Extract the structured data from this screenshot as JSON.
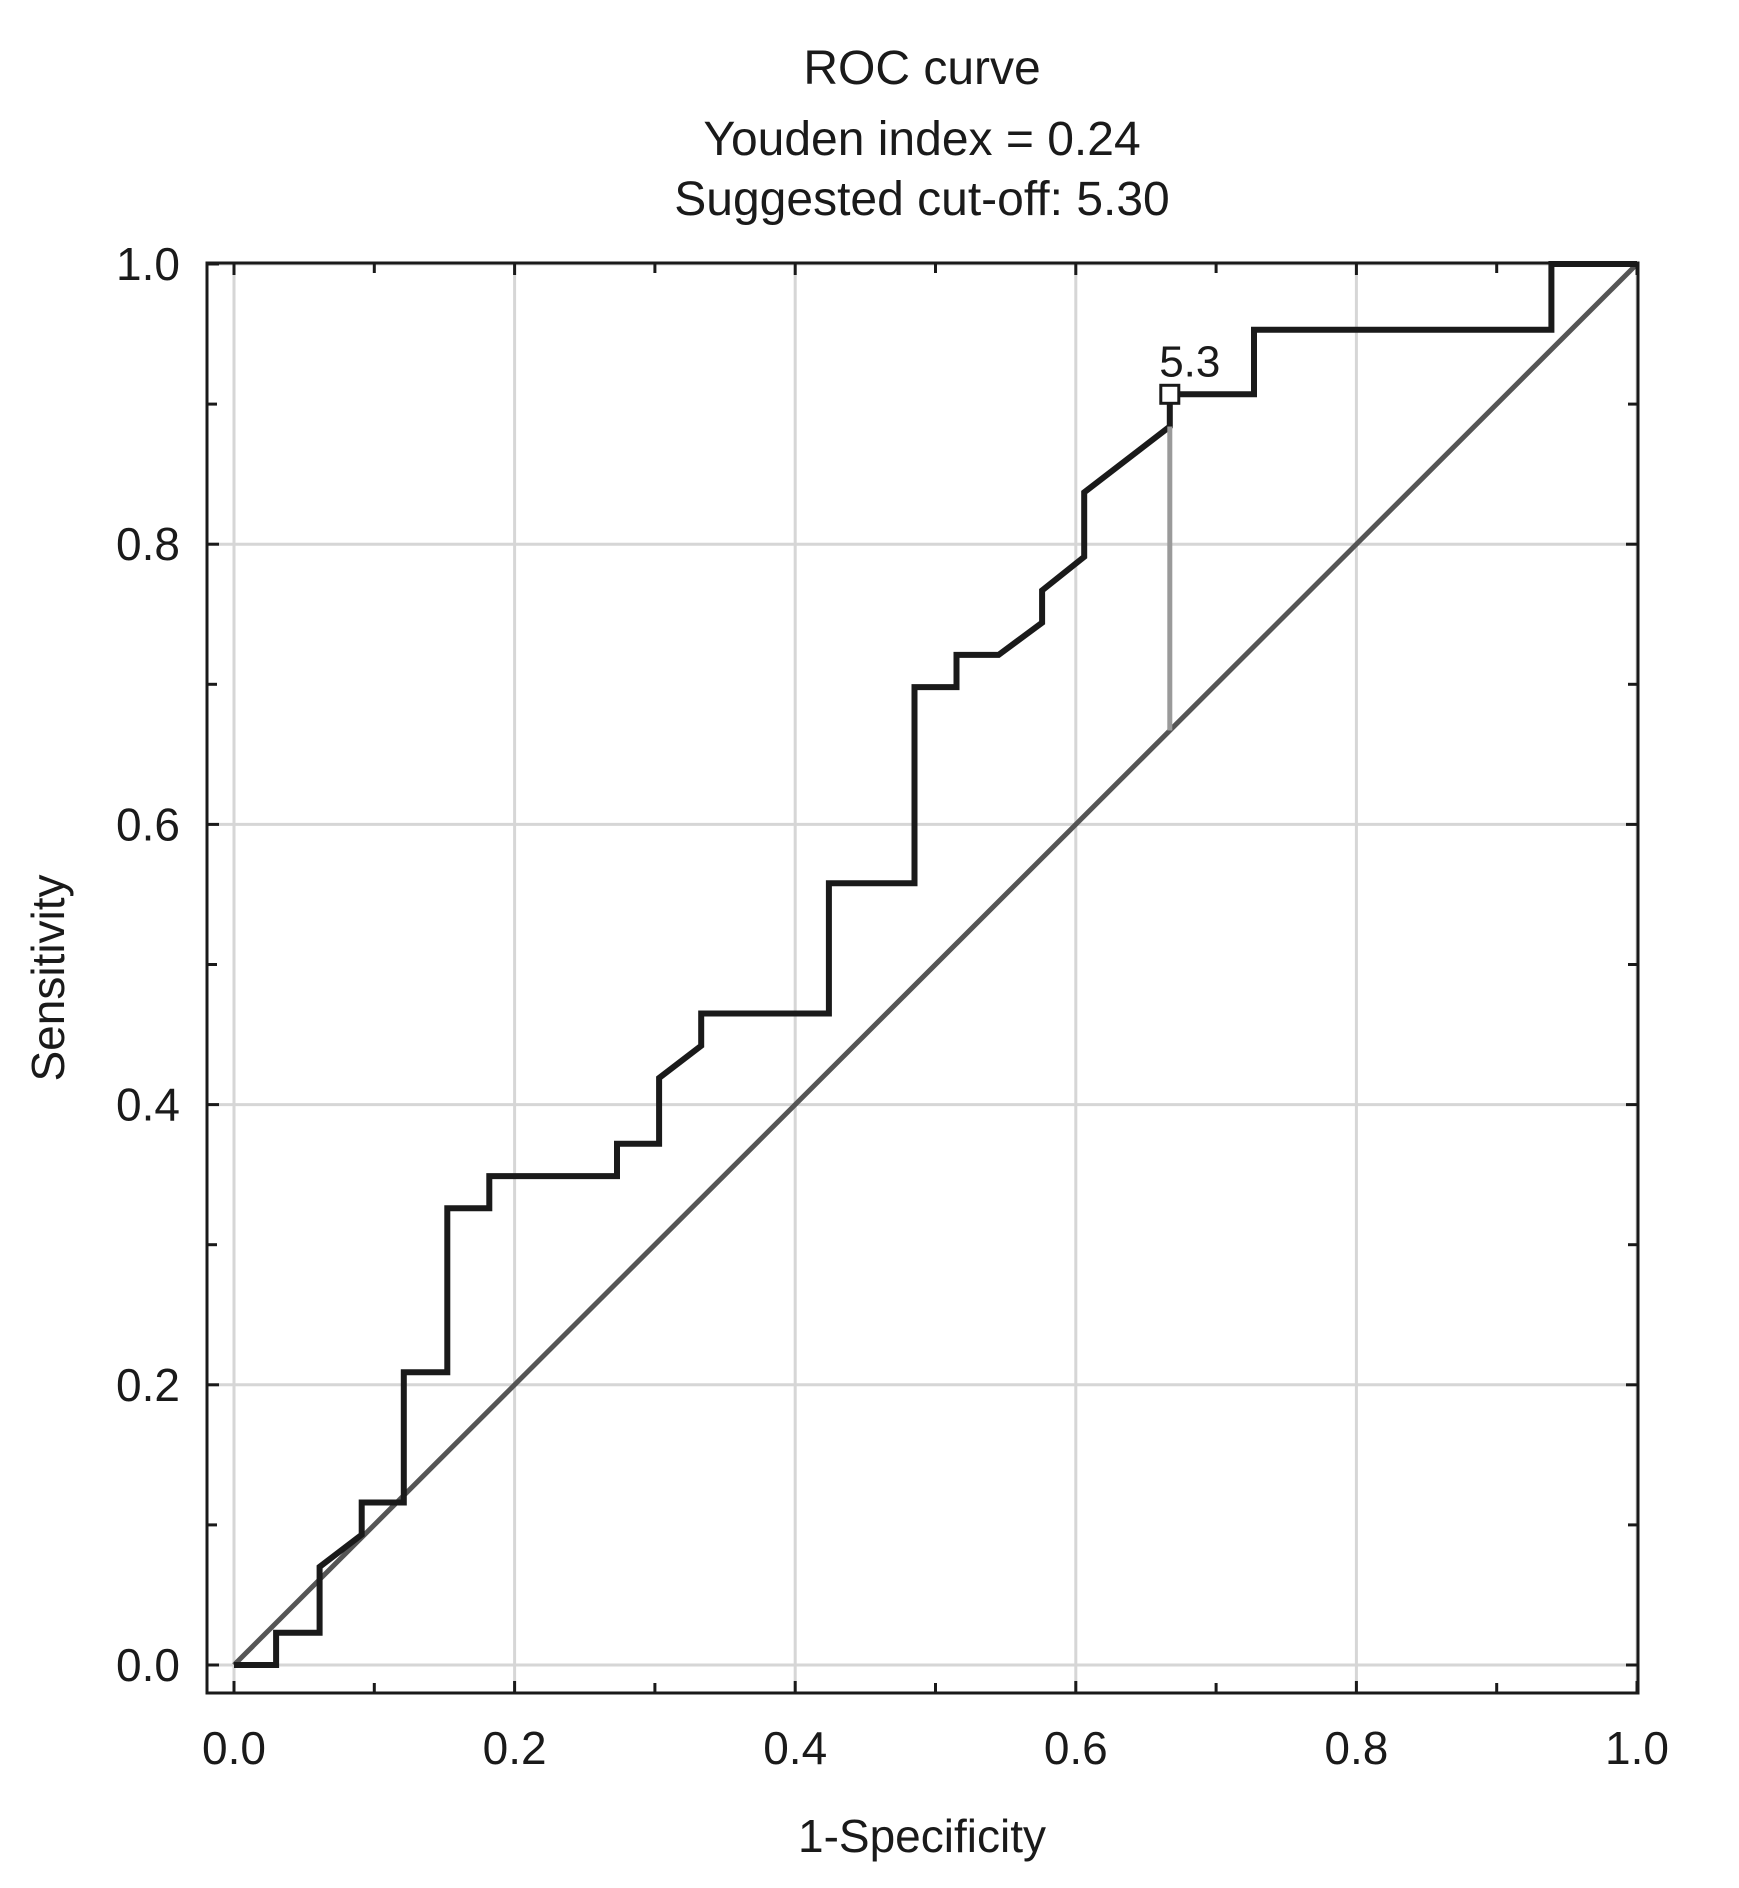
{
  "chart_data": {
    "type": "line",
    "title": "ROC curve",
    "subtitle_lines": [
      "Youden index = 0.24",
      "Suggested cut-off: 5.30"
    ],
    "xlabel": "1-Specificity",
    "ylabel": "Sensitivity",
    "xlim": [
      0.0,
      1.0
    ],
    "ylim": [
      0.0,
      1.0
    ],
    "xticks": [
      "0.0",
      "0.2",
      "0.4",
      "0.6",
      "0.8",
      "1.0"
    ],
    "yticks": [
      "0.0",
      "0.2",
      "0.4",
      "0.6",
      "0.8",
      "1.0"
    ],
    "grid": true,
    "series": [
      {
        "color": "#1a1a1a",
        "x": [
          0.0,
          0.03,
          0.03,
          0.061,
          0.061,
          0.091,
          0.091,
          0.121,
          0.121,
          0.152,
          0.152,
          0.182,
          0.182,
          0.273,
          0.273,
          0.303,
          0.303,
          0.333,
          0.333,
          0.424,
          0.424,
          0.485,
          0.485,
          0.515,
          0.515,
          0.545,
          0.576,
          0.576,
          0.606,
          0.606,
          0.667,
          0.667,
          0.727,
          0.727,
          0.939,
          0.939,
          1.0
        ],
        "y": [
          0.0,
          0.0,
          0.023,
          0.023,
          0.07,
          0.093,
          0.116,
          0.116,
          0.209,
          0.209,
          0.326,
          0.326,
          0.349,
          0.349,
          0.372,
          0.372,
          0.419,
          0.442,
          0.465,
          0.465,
          0.558,
          0.558,
          0.698,
          0.698,
          0.721,
          0.721,
          0.744,
          0.767,
          0.791,
          0.837,
          0.884,
          0.907,
          0.907,
          0.953,
          0.953,
          1.0,
          1.0
        ]
      },
      {
        "color": "#555555",
        "x": [
          0.0,
          1.0
        ],
        "y": [
          0.0,
          1.0
        ]
      }
    ],
    "annotations": [
      {
        "type": "youden-line",
        "x": 0.667,
        "y_from": 0.667,
        "y_to": 0.884,
        "color": "#9a9a9a"
      },
      {
        "type": "cutoff-marker",
        "x": 0.667,
        "y": 0.907,
        "label": "5.3"
      }
    ]
  }
}
